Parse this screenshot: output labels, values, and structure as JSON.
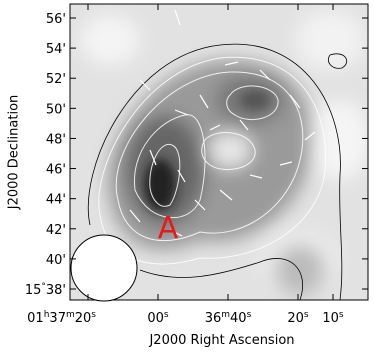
{
  "axes": {
    "x_label": "J2000 Right Ascension",
    "y_label": "J2000 Declination",
    "x_ticks": [
      "01h37m20s",
      "00s",
      "36m40s",
      "20s",
      "10s"
    ],
    "y_ticks": [
      "56'",
      "54'",
      "52'",
      "50'",
      "48'",
      "46'",
      "44'",
      "42'",
      "40'",
      "15°38'"
    ]
  },
  "annotation": "A"
}
